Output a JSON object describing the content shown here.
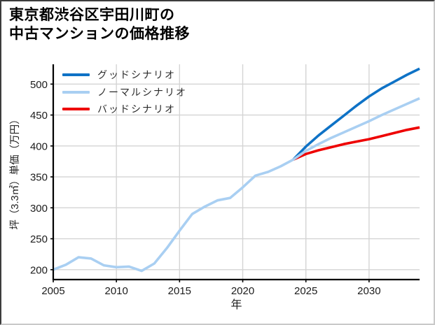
{
  "title": {
    "line1": "東京都渋谷区宇田川町の",
    "line2": "中古マンションの価格推移"
  },
  "chart_data": {
    "type": "line",
    "title": "東京都渋谷区宇田川町の中古マンションの価格推移",
    "xlabel": "年",
    "ylabel": "坪（3.3㎡）単価（万円）",
    "xlim": [
      2005,
      2034
    ],
    "ylim": [
      184,
      532
    ],
    "xticks": [
      2005,
      2010,
      2015,
      2020,
      2025,
      2030
    ],
    "yticks": [
      200,
      250,
      300,
      350,
      400,
      450,
      500
    ],
    "grid": true,
    "grid_color": "#d4d4d4",
    "axis_color": "#000000",
    "tick_label_color": "#1c1c1c",
    "legend_position": "upper-left",
    "series": [
      {
        "name": "グッドシナリオ",
        "color": "#0e72c6",
        "x": [
          2024,
          2025,
          2026,
          2027,
          2028,
          2029,
          2030,
          2031,
          2032,
          2033,
          2034
        ],
        "values": [
          378,
          399,
          417,
          433,
          449,
          465,
          480,
          493,
          504,
          515,
          525
        ]
      },
      {
        "name": "ノーマルシナリオ",
        "color": "#a9cff2",
        "x": [
          2005,
          2006,
          2007,
          2008,
          2009,
          2010,
          2011,
          2012,
          2013,
          2014,
          2015,
          2016,
          2017,
          2018,
          2019,
          2020,
          2021,
          2022,
          2023,
          2024,
          2025,
          2026,
          2027,
          2028,
          2029,
          2030,
          2031,
          2032,
          2033,
          2034
        ],
        "values": [
          200,
          208,
          220,
          218,
          207,
          204,
          205,
          198,
          210,
          235,
          263,
          290,
          302,
          312,
          316,
          333,
          352,
          358,
          367,
          378,
          392,
          403,
          413,
          422,
          431,
          440,
          450,
          459,
          468,
          477
        ]
      },
      {
        "name": "バッドシナリオ",
        "color": "#ee0000",
        "x": [
          2024,
          2025,
          2026,
          2027,
          2028,
          2029,
          2030,
          2031,
          2032,
          2033,
          2034
        ],
        "values": [
          378,
          387,
          393,
          398,
          403,
          407,
          411,
          416,
          421,
          426,
          430
        ]
      }
    ]
  }
}
